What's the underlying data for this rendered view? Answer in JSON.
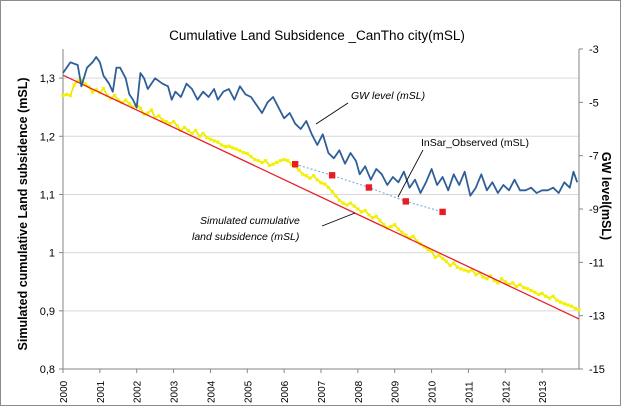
{
  "chart_data": {
    "type": "line",
    "title": "Cumulative Land Subsidence _CanTho city(mSL)",
    "ylabel": "Simulated cumulative Land subsidence (mSL)",
    "y2label": "GW level(mSL)",
    "xlabel": "",
    "x_categories": [
      "2000",
      "2001",
      "2002",
      "2003",
      "2004",
      "2005",
      "2006",
      "2007",
      "2008",
      "2009",
      "2010",
      "2011",
      "2012",
      "2013"
    ],
    "xlim": [
      2000,
      2014
    ],
    "ylim": [
      0.8,
      1.35
    ],
    "yticks": [
      "0,8",
      "0,9",
      "1",
      "1,1",
      "1,2",
      "1,3"
    ],
    "y2lim": [
      -15,
      -3
    ],
    "y2ticks": [
      "-3",
      "-5",
      "-7",
      "-9",
      "-11",
      "-13",
      "-15"
    ],
    "grid": "horizontal",
    "colors": {
      "gw_level": "#2f5f98",
      "trend": "#e8202a",
      "simulated": "#e6e600",
      "simulated_marker": "#f2f200",
      "insar_line": "#7fb3e6",
      "insar_marker": "#e81c24",
      "grid": "#d9d9d9",
      "axis": "#868686"
    },
    "annotations": [
      {
        "text": "GW level (mSL)",
        "series": "gw_level"
      },
      {
        "text": "InSar_Observed (mSL)",
        "series": "insar"
      },
      {
        "text": "Simulated cumulative",
        "series": "simulated"
      },
      {
        "text": "land subsidence (mSL)",
        "series": "simulated"
      }
    ],
    "series": [
      {
        "name": "GW level (mSL)",
        "key": "gw_level",
        "axis": "right",
        "x": [
          2000.0,
          2000.2,
          2000.4,
          2000.5,
          2000.65,
          2000.8,
          2000.9,
          2001.0,
          2001.1,
          2001.25,
          2001.35,
          2001.45,
          2001.55,
          2001.7,
          2001.8,
          2001.9,
          2002.0,
          2002.1,
          2002.2,
          2002.3,
          2002.5,
          2002.7,
          2002.85,
          2002.95,
          2003.05,
          2003.2,
          2003.35,
          2003.5,
          2003.65,
          2003.8,
          2003.95,
          2004.1,
          2004.2,
          2004.35,
          2004.5,
          2004.65,
          2004.8,
          2004.95,
          2005.1,
          2005.25,
          2005.4,
          2005.55,
          2005.7,
          2005.85,
          2006.0,
          2006.15,
          2006.3,
          2006.45,
          2006.6,
          2006.75,
          2006.9,
          2007.05,
          2007.2,
          2007.35,
          2007.5,
          2007.65,
          2007.8,
          2007.95,
          2008.05,
          2008.2,
          2008.35,
          2008.5,
          2008.65,
          2008.8,
          2008.95,
          2009.1,
          2009.25,
          2009.4,
          2009.55,
          2009.7,
          2009.85,
          2010.0,
          2010.15,
          2010.3,
          2010.45,
          2010.6,
          2010.75,
          2010.9,
          2011.05,
          2011.2,
          2011.35,
          2011.5,
          2011.65,
          2011.8,
          2011.95,
          2012.1,
          2012.25,
          2012.4,
          2012.55,
          2012.7,
          2012.85,
          2013.0,
          2013.15,
          2013.3,
          2013.45,
          2013.6,
          2013.75,
          2013.85,
          2013.95
        ],
        "values": [
          -3.9,
          -3.5,
          -3.6,
          -4.4,
          -3.7,
          -3.5,
          -3.3,
          -3.5,
          -4.0,
          -4.3,
          -4.6,
          -3.7,
          -3.7,
          -4.1,
          -4.7,
          -4.9,
          -5.2,
          -3.9,
          -4.1,
          -4.5,
          -4.1,
          -4.3,
          -4.4,
          -4.9,
          -4.6,
          -4.8,
          -4.3,
          -4.5,
          -4.9,
          -4.6,
          -4.8,
          -4.5,
          -4.9,
          -4.6,
          -4.5,
          -4.9,
          -4.4,
          -4.7,
          -4.8,
          -5.1,
          -5.4,
          -5.0,
          -4.8,
          -5.2,
          -5.6,
          -5.4,
          -5.8,
          -6.0,
          -5.7,
          -6.2,
          -6.6,
          -6.2,
          -6.9,
          -7.1,
          -6.8,
          -7.3,
          -6.9,
          -7.2,
          -7.7,
          -7.4,
          -7.9,
          -7.5,
          -7.7,
          -8.1,
          -7.8,
          -8.0,
          -7.6,
          -8.2,
          -7.9,
          -8.4,
          -8.0,
          -7.5,
          -8.1,
          -7.8,
          -8.3,
          -7.7,
          -8.1,
          -7.6,
          -8.5,
          -8.2,
          -7.7,
          -8.3,
          -8.0,
          -8.4,
          -8.1,
          -8.3,
          -7.9,
          -8.3,
          -8.3,
          -8.2,
          -8.4,
          -8.3,
          -8.3,
          -8.2,
          -8.4,
          -8.0,
          -8.2,
          -7.6,
          -8.0
        ]
      },
      {
        "name": "Linear trend",
        "key": "trend",
        "axis": "left",
        "x": [
          2000.0,
          2014.0
        ],
        "values": [
          1.305,
          0.886
        ]
      },
      {
        "name": "Simulated cumulative land subsidence (mSL)",
        "key": "simulated",
        "axis": "left",
        "x": [
          2000.0,
          2000.1,
          2000.2,
          2000.3,
          2000.4,
          2000.5,
          2000.6,
          2000.7,
          2000.8,
          2000.9,
          2001.0,
          2001.1,
          2001.2,
          2001.3,
          2001.4,
          2001.5,
          2001.6,
          2001.7,
          2001.8,
          2001.9,
          2002.0,
          2002.1,
          2002.2,
          2002.3,
          2002.4,
          2002.5,
          2002.6,
          2002.7,
          2002.8,
          2002.9,
          2003.0,
          2003.1,
          2003.2,
          2003.3,
          2003.4,
          2003.5,
          2003.6,
          2003.7,
          2003.8,
          2003.9,
          2004.0,
          2004.1,
          2004.2,
          2004.3,
          2004.4,
          2004.5,
          2004.6,
          2004.7,
          2004.8,
          2004.9,
          2005.0,
          2005.1,
          2005.2,
          2005.3,
          2005.4,
          2005.5,
          2005.6,
          2005.7,
          2005.8,
          2005.9,
          2006.0,
          2006.1,
          2006.2,
          2006.3,
          2006.4,
          2006.5,
          2006.6,
          2006.7,
          2006.8,
          2006.9,
          2007.0,
          2007.1,
          2007.2,
          2007.3,
          2007.4,
          2007.5,
          2007.6,
          2007.7,
          2007.8,
          2007.9,
          2008.0,
          2008.1,
          2008.2,
          2008.3,
          2008.4,
          2008.5,
          2008.6,
          2008.7,
          2008.8,
          2008.9,
          2009.0,
          2009.1,
          2009.2,
          2009.3,
          2009.4,
          2009.5,
          2009.6,
          2009.7,
          2009.8,
          2009.9,
          2010.0,
          2010.1,
          2010.2,
          2010.3,
          2010.4,
          2010.5,
          2010.6,
          2010.7,
          2010.8,
          2010.9,
          2011.0,
          2011.1,
          2011.2,
          2011.3,
          2011.4,
          2011.5,
          2011.6,
          2011.7,
          2011.8,
          2011.9,
          2012.0,
          2012.1,
          2012.2,
          2012.3,
          2012.4,
          2012.5,
          2012.6,
          2012.7,
          2012.8,
          2012.9,
          2013.0,
          2013.1,
          2013.2,
          2013.3,
          2013.4,
          2013.5,
          2013.6,
          2013.7,
          2013.8,
          2013.9,
          2014.0
        ],
        "values": [
          1.27,
          1.272,
          1.27,
          1.288,
          1.295,
          1.296,
          1.29,
          1.285,
          1.276,
          1.28,
          1.275,
          1.282,
          1.27,
          1.265,
          1.27,
          1.262,
          1.258,
          1.262,
          1.256,
          1.25,
          1.255,
          1.248,
          1.238,
          1.24,
          1.245,
          1.232,
          1.235,
          1.228,
          1.225,
          1.222,
          1.225,
          1.218,
          1.21,
          1.215,
          1.21,
          1.205,
          1.21,
          1.2,
          1.205,
          1.198,
          1.195,
          1.192,
          1.19,
          1.185,
          1.182,
          1.183,
          1.18,
          1.178,
          1.175,
          1.172,
          1.17,
          1.165,
          1.16,
          1.158,
          1.155,
          1.158,
          1.15,
          1.152,
          1.155,
          1.158,
          1.16,
          1.158,
          1.152,
          1.148,
          1.142,
          1.135,
          1.132,
          1.128,
          1.132,
          1.125,
          1.12,
          1.118,
          1.112,
          1.105,
          1.098,
          1.09,
          1.085,
          1.082,
          1.085,
          1.08,
          1.075,
          1.07,
          1.072,
          1.065,
          1.06,
          1.062,
          1.055,
          1.048,
          1.042,
          1.045,
          1.048,
          1.04,
          1.035,
          1.03,
          1.025,
          1.028,
          1.02,
          1.015,
          1.01,
          1.005,
          1.002,
          0.992,
          0.995,
          0.99,
          0.985,
          0.978,
          0.982,
          0.975,
          0.972,
          0.97,
          0.968,
          0.97,
          0.962,
          0.965,
          0.958,
          0.955,
          0.96,
          0.952,
          0.948,
          0.955,
          0.95,
          0.945,
          0.948,
          0.942,
          0.945,
          0.94,
          0.938,
          0.935,
          0.932,
          0.928,
          0.93,
          0.925,
          0.922,
          0.925,
          0.918,
          0.915,
          0.912,
          0.91,
          0.908,
          0.904,
          0.902
        ]
      },
      {
        "name": "InSar_Observed (mSL)",
        "key": "insar",
        "axis": "left",
        "x": [
          2006.3,
          2007.3,
          2008.3,
          2009.3,
          2010.3
        ],
        "values": [
          1.152,
          1.133,
          1.112,
          1.088,
          1.07
        ]
      }
    ]
  }
}
